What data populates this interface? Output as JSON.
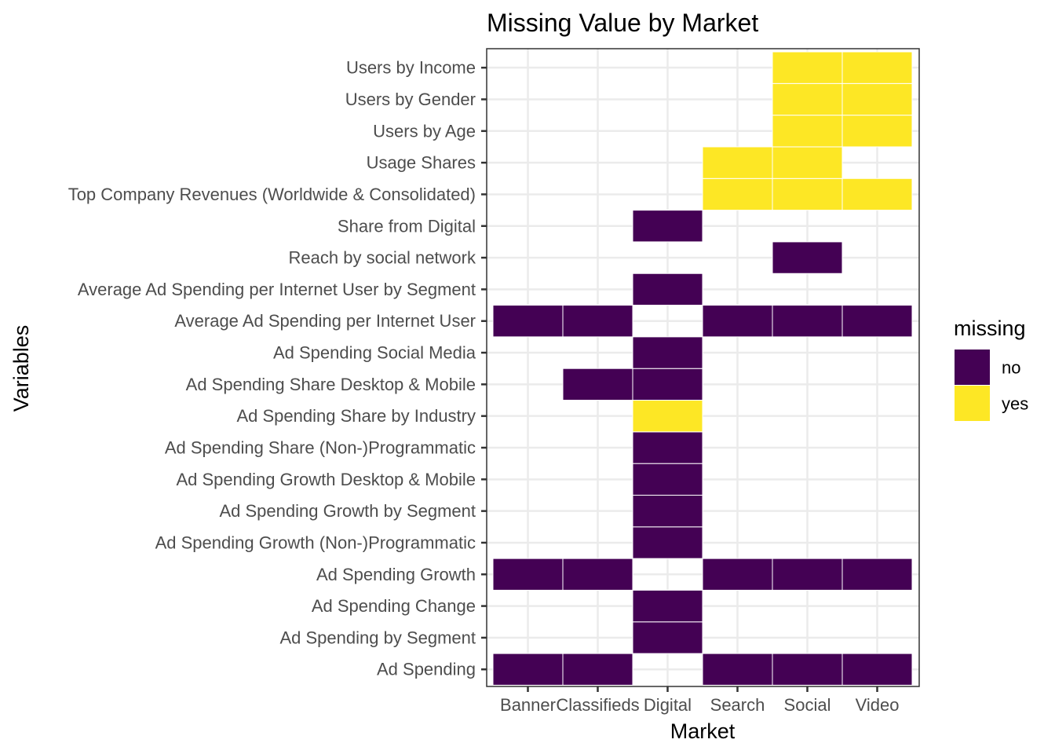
{
  "chart_data": {
    "type": "heatmap",
    "title": "Missing Value by Market",
    "xlabel": "Market",
    "ylabel": "Variables",
    "x_categories": [
      "Banner",
      "Classifieds",
      "Digital",
      "Search",
      "Social",
      "Video"
    ],
    "y_categories": [
      "Ad Spending",
      "Ad Spending by Segment",
      "Ad Spending Change",
      "Ad Spending Growth",
      "Ad Spending Growth (Non-)Programmatic",
      "Ad Spending Growth by Segment",
      "Ad Spending Growth Desktop & Mobile",
      "Ad Spending Share (Non-)Programmatic",
      "Ad Spending Share by Industry",
      "Ad Spending Share Desktop & Mobile",
      "Ad Spending Social Media",
      "Average Ad Spending per Internet User",
      "Average Ad Spending per Internet User by Segment",
      "Reach by social network",
      "Share from Digital",
      "Top Company Revenues (Worldwide & Consolidated)",
      "Usage Shares",
      "Users by Age",
      "Users by Gender",
      "Users by Income"
    ],
    "legend": {
      "title": "missing",
      "position": "right",
      "entries": [
        {
          "label": "no",
          "color": "#440154"
        },
        {
          "label": "yes",
          "color": "#FDE725"
        }
      ]
    },
    "cells": [
      {
        "x": "Banner",
        "y": "Ad Spending",
        "missing": "no"
      },
      {
        "x": "Classifieds",
        "y": "Ad Spending",
        "missing": "no"
      },
      {
        "x": "Search",
        "y": "Ad Spending",
        "missing": "no"
      },
      {
        "x": "Social",
        "y": "Ad Spending",
        "missing": "no"
      },
      {
        "x": "Video",
        "y": "Ad Spending",
        "missing": "no"
      },
      {
        "x": "Digital",
        "y": "Ad Spending by Segment",
        "missing": "no"
      },
      {
        "x": "Digital",
        "y": "Ad Spending Change",
        "missing": "no"
      },
      {
        "x": "Banner",
        "y": "Ad Spending Growth",
        "missing": "no"
      },
      {
        "x": "Classifieds",
        "y": "Ad Spending Growth",
        "missing": "no"
      },
      {
        "x": "Search",
        "y": "Ad Spending Growth",
        "missing": "no"
      },
      {
        "x": "Social",
        "y": "Ad Spending Growth",
        "missing": "no"
      },
      {
        "x": "Video",
        "y": "Ad Spending Growth",
        "missing": "no"
      },
      {
        "x": "Digital",
        "y": "Ad Spending Growth (Non-)Programmatic",
        "missing": "no"
      },
      {
        "x": "Digital",
        "y": "Ad Spending Growth by Segment",
        "missing": "no"
      },
      {
        "x": "Digital",
        "y": "Ad Spending Growth Desktop & Mobile",
        "missing": "no"
      },
      {
        "x": "Digital",
        "y": "Ad Spending Share (Non-)Programmatic",
        "missing": "no"
      },
      {
        "x": "Digital",
        "y": "Ad Spending Share by Industry",
        "missing": "yes"
      },
      {
        "x": "Classifieds",
        "y": "Ad Spending Share Desktop & Mobile",
        "missing": "no"
      },
      {
        "x": "Digital",
        "y": "Ad Spending Share Desktop & Mobile",
        "missing": "no"
      },
      {
        "x": "Digital",
        "y": "Ad Spending Social Media",
        "missing": "no"
      },
      {
        "x": "Banner",
        "y": "Average Ad Spending per Internet User",
        "missing": "no"
      },
      {
        "x": "Classifieds",
        "y": "Average Ad Spending per Internet User",
        "missing": "no"
      },
      {
        "x": "Search",
        "y": "Average Ad Spending per Internet User",
        "missing": "no"
      },
      {
        "x": "Social",
        "y": "Average Ad Spending per Internet User",
        "missing": "no"
      },
      {
        "x": "Video",
        "y": "Average Ad Spending per Internet User",
        "missing": "no"
      },
      {
        "x": "Digital",
        "y": "Average Ad Spending per Internet User by Segment",
        "missing": "no"
      },
      {
        "x": "Social",
        "y": "Reach by social network",
        "missing": "no"
      },
      {
        "x": "Digital",
        "y": "Share from Digital",
        "missing": "no"
      },
      {
        "x": "Search",
        "y": "Top Company Revenues (Worldwide & Consolidated)",
        "missing": "yes"
      },
      {
        "x": "Social",
        "y": "Top Company Revenues (Worldwide & Consolidated)",
        "missing": "yes"
      },
      {
        "x": "Video",
        "y": "Top Company Revenues (Worldwide & Consolidated)",
        "missing": "yes"
      },
      {
        "x": "Search",
        "y": "Usage Shares",
        "missing": "yes"
      },
      {
        "x": "Social",
        "y": "Usage Shares",
        "missing": "yes"
      },
      {
        "x": "Social",
        "y": "Users by Age",
        "missing": "yes"
      },
      {
        "x": "Video",
        "y": "Users by Age",
        "missing": "yes"
      },
      {
        "x": "Social",
        "y": "Users by Gender",
        "missing": "yes"
      },
      {
        "x": "Video",
        "y": "Users by Gender",
        "missing": "yes"
      },
      {
        "x": "Social",
        "y": "Users by Income",
        "missing": "yes"
      },
      {
        "x": "Video",
        "y": "Users by Income",
        "missing": "yes"
      }
    ],
    "grid": true,
    "theme": "bw"
  }
}
